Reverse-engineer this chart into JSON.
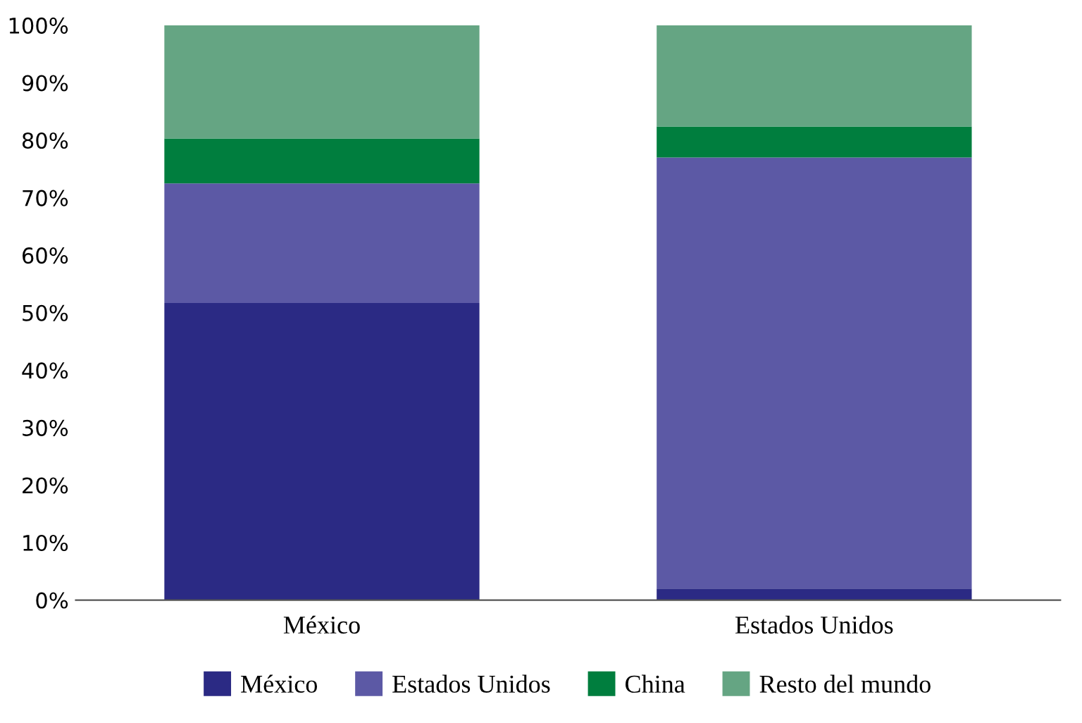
{
  "chart_data": {
    "type": "bar",
    "stacked": true,
    "categories": [
      "México",
      "Estados Unidos"
    ],
    "series": [
      {
        "name": "México",
        "color": "#2b2a84",
        "values": [
          51.7,
          2.0
        ]
      },
      {
        "name": "Estados Unidos",
        "color": "#5c59a5",
        "values": [
          20.8,
          75.0
        ]
      },
      {
        "name": "China",
        "color": "#007e3e",
        "values": [
          7.8,
          5.4
        ]
      },
      {
        "name": "Resto del mundo",
        "color": "#65a583",
        "values": [
          19.7,
          17.6
        ]
      }
    ],
    "ylim": [
      0,
      100
    ],
    "yticks": [
      {
        "value": 0,
        "label": "0%"
      },
      {
        "value": 10,
        "label": "10%"
      },
      {
        "value": 20,
        "label": "20%"
      },
      {
        "value": 30,
        "label": "30%"
      },
      {
        "value": 40,
        "label": "40%"
      },
      {
        "value": 50,
        "label": "50%"
      },
      {
        "value": 60,
        "label": "60%"
      },
      {
        "value": 70,
        "label": "70%"
      },
      {
        "value": 80,
        "label": "80%"
      },
      {
        "value": 90,
        "label": "90%"
      },
      {
        "value": 100,
        "label": "100%"
      }
    ],
    "grid": false,
    "legend": "bottom"
  }
}
